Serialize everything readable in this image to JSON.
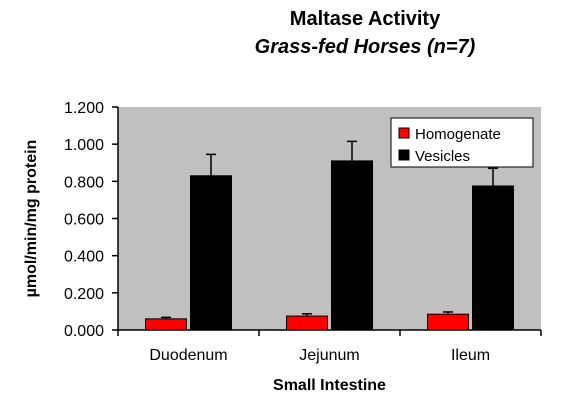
{
  "chart_data": {
    "type": "bar",
    "title": "Maltase Activity",
    "subtitle": "Grass-fed Horses (n=7)",
    "xlabel": "Small Intestine",
    "ylabel": "µmol/min/mg protein",
    "categories": [
      "Duodenum",
      "Jejunum",
      "Ileum"
    ],
    "ylim": [
      0,
      1.2
    ],
    "yticks": [
      "0.000",
      "0.200",
      "0.400",
      "0.600",
      "0.800",
      "1.000",
      "1.200"
    ],
    "ytick_values": [
      0,
      0.2,
      0.4,
      0.6,
      0.8,
      1.0,
      1.2
    ],
    "grid": false,
    "legend_position": "top-right",
    "series": [
      {
        "name": "Homogenate",
        "color": "#ff0000",
        "values": [
          0.06,
          0.075,
          0.085
        ],
        "errors": [
          0.008,
          0.012,
          0.012
        ]
      },
      {
        "name": "Vesicles",
        "color": "#000000",
        "values": [
          0.83,
          0.91,
          0.775
        ],
        "errors": [
          0.115,
          0.105,
          0.095
        ]
      }
    ],
    "plot_background": "#c0c0c0"
  }
}
